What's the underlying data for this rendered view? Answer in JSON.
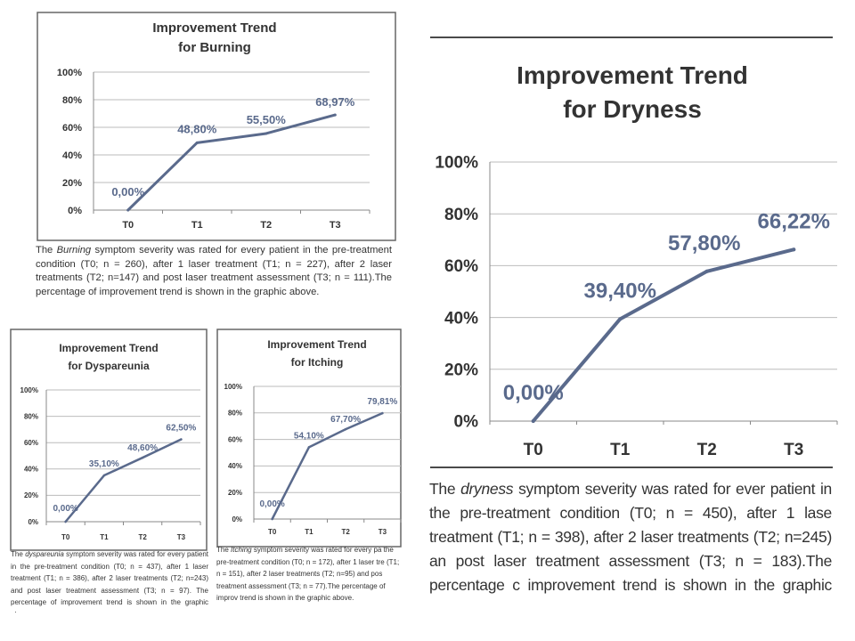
{
  "chart_data": [
    {
      "type": "line",
      "title": "Improvement Trend",
      "title_line2": "for Burning",
      "categories": [
        "T0",
        "T1",
        "T2",
        "T3"
      ],
      "values": [
        0.0,
        48.8,
        55.5,
        68.97
      ],
      "data_labels": [
        "0,00%",
        "48,80%",
        "55,50%",
        "68,97%"
      ],
      "y_ticks": [
        "0%",
        "20%",
        "40%",
        "60%",
        "80%",
        "100%"
      ],
      "ylim": [
        0,
        100
      ],
      "grid": true,
      "series_color": "#5a6a8c"
    },
    {
      "type": "line",
      "title": "Improvement Trend",
      "title_line2": "for Dryness",
      "categories": [
        "T0",
        "T1",
        "T2",
        "T3"
      ],
      "values": [
        0.0,
        39.4,
        57.8,
        66.22
      ],
      "data_labels": [
        "0,00%",
        "39,40%",
        "57,80%",
        "66,22%"
      ],
      "y_ticks": [
        "0%",
        "20%",
        "40%",
        "60%",
        "80%",
        "100%"
      ],
      "ylim": [
        0,
        100
      ],
      "grid": true,
      "series_color": "#5a6a8c"
    },
    {
      "type": "line",
      "title": "Improvement Trend",
      "title_line2": "for Dyspareunia",
      "categories": [
        "T0",
        "T1",
        "T2",
        "T3"
      ],
      "values": [
        0.0,
        35.1,
        48.6,
        62.5
      ],
      "data_labels": [
        "0,00%",
        "35,10%",
        "48,60%",
        "62,50%"
      ],
      "y_ticks": [
        "0%",
        "20%",
        "40%",
        "60%",
        "80%",
        "100%"
      ],
      "ylim": [
        0,
        100
      ],
      "grid": true,
      "series_color": "#5a6a8c"
    },
    {
      "type": "line",
      "title": "Improvement Trend",
      "title_line2": "for Itching",
      "categories": [
        "T0",
        "T1",
        "T2",
        "T3"
      ],
      "values": [
        0.0,
        54.1,
        67.7,
        79.81
      ],
      "data_labels": [
        "0,00%",
        "54,10%",
        "67,70%",
        "79,81%"
      ],
      "y_ticks": [
        "0%",
        "20%",
        "40%",
        "60%",
        "80%",
        "100%"
      ],
      "ylim": [
        0,
        100
      ],
      "grid": true,
      "series_color": "#5a6a8c"
    }
  ],
  "captions": {
    "burning": {
      "pre": "The ",
      "symptom": "Burning",
      "post": " symptom severity   was rated for every patient in the pre-treatment condition (T0; n = 260), after 1 laser treatment (T1; n = 227), after 2 laser treatments (T2; n=147) and post laser treatment assessment (T3; n = 111).The percentage of improvement trend is shown in the graphic above."
    },
    "dryness": {
      "pre": "The ",
      "symptom": "dryness",
      "post": " symptom severity   was rated for ever patient in the pre-treatment condition (T0; n = 450), after 1 lase treatment (T1; n = 398), after 2 laser treatments (T2; n=245) an post laser treatment assessment (T3; n = 183).The percentage c improvement trend is shown in the graphic above."
    },
    "dyspareunia": {
      "pre": "The ",
      "symptom": "dyspareunia",
      "post": " symptom severity   was rated for every patient in the pre-treatment condition (T0; n = 437), after 1 laser treatment (T1; n = 386), after 2 laser treatments (T2; n=243) and post laser treatment assessment (T3; n = 97). The percentage of improvement trend is shown in the graphic above."
    },
    "itching": {
      "pre": "The ",
      "symptom": "Itching",
      "post": " symptom severity   was rated for every pa the pre-treatment condition (T0; n = 172), after 1 laser tre (T1; n = 151), after 2 laser treatments (T2; n=95) and pos treatment assessment (T3; n = 77).The percentage of improv trend is shown in the graphic above."
    }
  }
}
